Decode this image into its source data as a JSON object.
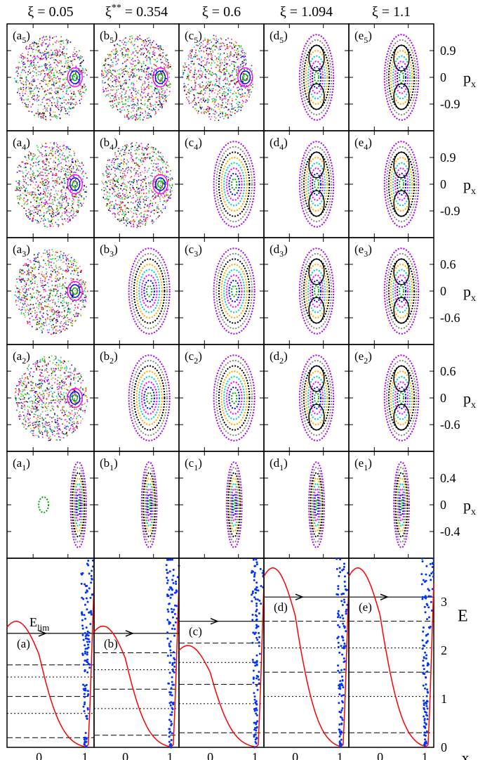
{
  "chart_data": {
    "type": "scatter",
    "columns": [
      {
        "xi_label": "ξ = 0.05",
        "xi": 0.05
      },
      {
        "xi_label": "ξ",
        "xi_sup": "**",
        "xi_tail": " = 0.354",
        "xi": 0.354
      },
      {
        "xi_label": "ξ = 0.6",
        "xi": 0.6
      },
      {
        "xi_label": "ξ = 1.094",
        "xi": 1.094
      },
      {
        "xi_label": "ξ = 1.1",
        "xi": 1.1
      }
    ],
    "panel_letters": [
      "a",
      "b",
      "c",
      "d",
      "e"
    ],
    "row_indices": [
      5,
      4,
      3,
      2,
      1
    ],
    "right_axis_label": "p",
    "right_axis_sub": "x",
    "right_axis_ticks": [
      [
        "0.9",
        "0",
        "-0.9"
      ],
      [
        "0.9",
        "0",
        "-0.9"
      ],
      [
        "0.6",
        "0",
        "-0.6"
      ],
      [
        "0.6",
        "0",
        "-0.6"
      ],
      [
        "0.4",
        "0",
        "-0.4"
      ]
    ],
    "energy_panel": {
      "ylabel": "E",
      "xlabel": "x",
      "y_ticks": [
        "3",
        "2",
        "1",
        "0"
      ],
      "x_ticks": [
        "0",
        "1"
      ],
      "ylim": [
        0,
        3.9
      ],
      "xlim": [
        -0.7,
        1.2
      ],
      "limit_label": "E",
      "limit_sub": "lim",
      "panels": [
        {
          "label": "(a)",
          "e_lim": 2.35,
          "levels": [
            0.2,
            0.7,
            1.05,
            1.45,
            1.7
          ]
        },
        {
          "label": "(b)",
          "e_lim": 2.35,
          "levels": [
            0.25,
            0.8,
            1.2,
            1.6,
            1.95
          ]
        },
        {
          "label": "(c)",
          "e_lim": 2.6,
          "levels": [
            0.3,
            0.9,
            1.3,
            1.75,
            2.15
          ]
        },
        {
          "label": "(d)",
          "e_lim": 3.1,
          "levels": [
            0.3,
            1.05,
            1.55,
            2.05,
            2.6
          ]
        },
        {
          "label": "(e)",
          "e_lim": 3.1,
          "levels": [
            0.3,
            1.05,
            1.55,
            2.05,
            2.6
          ]
        }
      ]
    }
  }
}
